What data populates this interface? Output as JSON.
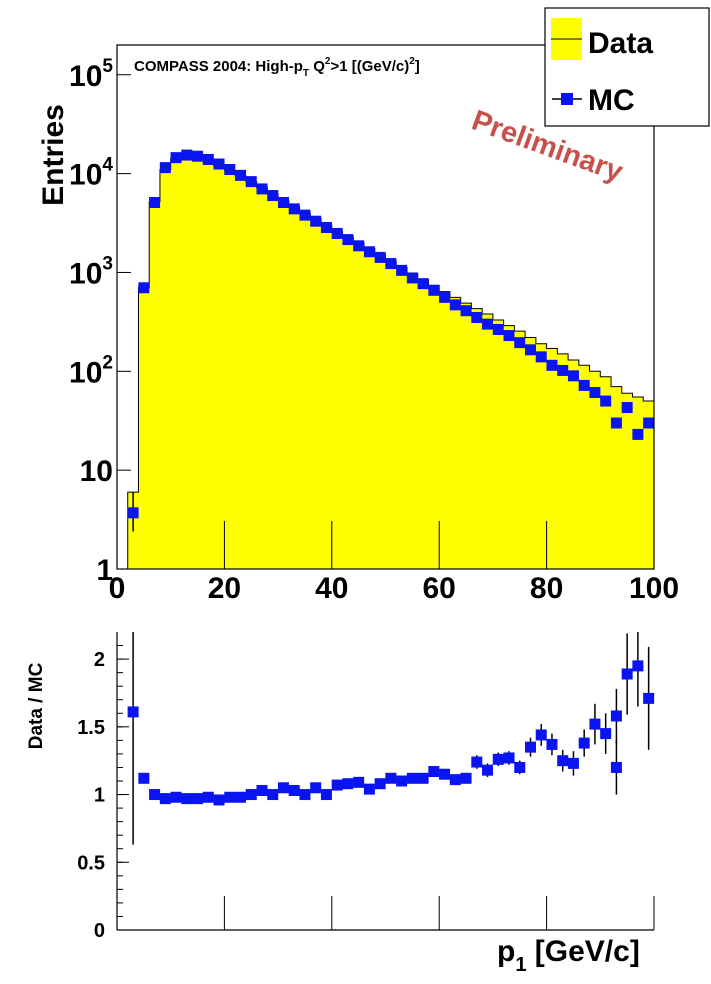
{
  "colors": {
    "data_fill": "#ffff00",
    "mc_marker": "#0a14f0",
    "preliminary": "#c8504a",
    "frame": "#000000"
  },
  "top": {
    "title_text": "COMPASS 2004: High-p",
    "title_sub": "T",
    "title_mid": " Q",
    "title_sup": "2",
    "title_rest": ">1 [(GeV/c)",
    "title_sup2": "2",
    "title_end": "]",
    "ylabel": "Entries",
    "preliminary": "Preliminary",
    "legend": {
      "data_label": "Data",
      "mc_label": "MC"
    }
  },
  "bottom": {
    "ylabel": "Data / MC",
    "xlabel_main": "p",
    "xlabel_sub": "1",
    "xlabel_rest": " [GeV/c]"
  },
  "chart_data": [
    {
      "type": "bar",
      "scale": "log",
      "xlim": [
        0,
        100
      ],
      "ylim": [
        1,
        200000
      ],
      "x_ticks": [
        "0",
        "20",
        "40",
        "60",
        "80",
        "100"
      ],
      "y_ticks": [
        {
          "value": 1,
          "base": "1",
          "exp": ""
        },
        {
          "value": 10,
          "base": "10",
          "exp": ""
        },
        {
          "value": 100,
          "base": "10",
          "exp": "2"
        },
        {
          "value": 1000,
          "base": "10",
          "exp": "3"
        },
        {
          "value": 10000,
          "base": "10",
          "exp": "4"
        },
        {
          "value": 100000,
          "base": "10",
          "exp": "5"
        }
      ],
      "bin_width": 2,
      "bin_edges": [
        2,
        100
      ],
      "series": [
        {
          "name": "Data",
          "style": "filled-histogram",
          "values": [
            6,
            700,
            5200,
            11000,
            14200,
            15000,
            14500,
            13500,
            12000,
            10800,
            9500,
            8300,
            7200,
            6200,
            5300,
            4600,
            4000,
            3500,
            3000,
            2600,
            2300,
            2000,
            1750,
            1500,
            1300,
            1130,
            980,
            850,
            740,
            640,
            560,
            490,
            430,
            380,
            330,
            290,
            255,
            220,
            190,
            170,
            150,
            130,
            115,
            100,
            88,
            70,
            60,
            55,
            50
          ]
        },
        {
          "name": "MC",
          "style": "markers",
          "x": [
            3,
            5,
            7,
            9,
            11,
            13,
            15,
            17,
            19,
            21,
            23,
            25,
            27,
            29,
            31,
            33,
            35,
            37,
            39,
            41,
            43,
            45,
            47,
            49,
            51,
            53,
            55,
            57,
            59,
            61,
            63,
            65,
            67,
            69,
            71,
            73,
            75,
            77,
            79,
            81,
            83,
            85,
            87,
            89,
            91,
            93,
            95,
            97,
            99
          ],
          "values": [
            3.7,
            700,
            5100,
            11500,
            14500,
            15400,
            15000,
            13900,
            12500,
            11000,
            9600,
            8300,
            7000,
            6000,
            5100,
            4400,
            3800,
            3300,
            2850,
            2480,
            2150,
            1860,
            1620,
            1420,
            1230,
            1050,
            880,
            770,
            660,
            560,
            470,
            410,
            350,
            300,
            265,
            230,
            195,
            165,
            140,
            115,
            102,
            90,
            72,
            61,
            50,
            30,
            43,
            23,
            30
          ]
        }
      ]
    },
    {
      "type": "scatter",
      "xlim": [
        0,
        100
      ],
      "ylim": [
        0,
        2.2
      ],
      "y_ticks": [
        "0",
        "0.5",
        "1",
        "1.5",
        "2"
      ],
      "x_tick_values": [
        0,
        20,
        40,
        60,
        80,
        100
      ],
      "series": [
        {
          "name": "Data / MC",
          "x": [
            3,
            5,
            7,
            9,
            11,
            13,
            15,
            17,
            19,
            21,
            23,
            25,
            27,
            29,
            31,
            33,
            35,
            37,
            39,
            41,
            43,
            45,
            47,
            49,
            51,
            53,
            55,
            57,
            59,
            61,
            63,
            65,
            67,
            69,
            71,
            73,
            75,
            77,
            79,
            81,
            83,
            85,
            87,
            89,
            91,
            93,
            95,
            99
          ],
          "values": [
            1.61,
            1.12,
            1.0,
            0.97,
            0.98,
            0.97,
            0.97,
            0.98,
            0.96,
            0.98,
            0.98,
            1.0,
            1.03,
            1.0,
            1.05,
            1.03,
            1.0,
            1.05,
            1.0,
            1.07,
            1.08,
            1.09,
            1.04,
            1.08,
            1.12,
            1.1,
            1.12,
            1.12,
            1.17,
            1.15,
            1.11,
            1.12,
            1.24,
            1.18,
            1.26,
            1.27,
            1.2,
            1.35,
            1.44,
            1.37,
            1.25,
            1.23,
            1.38,
            1.52,
            1.45,
            1.58,
            1.89,
            1.71
          ],
          "errors": [
            0.98,
            0.02,
            0.01,
            0.01,
            0.01,
            0.01,
            0.01,
            0.01,
            0.01,
            0.01,
            0.01,
            0.01,
            0.01,
            0.01,
            0.01,
            0.01,
            0.01,
            0.01,
            0.01,
            0.01,
            0.01,
            0.02,
            0.02,
            0.02,
            0.02,
            0.02,
            0.02,
            0.02,
            0.02,
            0.03,
            0.03,
            0.03,
            0.05,
            0.05,
            0.05,
            0.05,
            0.05,
            0.07,
            0.08,
            0.08,
            0.08,
            0.09,
            0.1,
            0.15,
            0.15,
            0.2,
            0.3,
            0.38
          ]
        },
        {
          "name": "Data / MC (tail)",
          "x": [
            93,
            97
          ],
          "values": [
            1.2,
            1.95
          ],
          "errors": [
            0.2,
            0.3
          ]
        }
      ]
    }
  ]
}
